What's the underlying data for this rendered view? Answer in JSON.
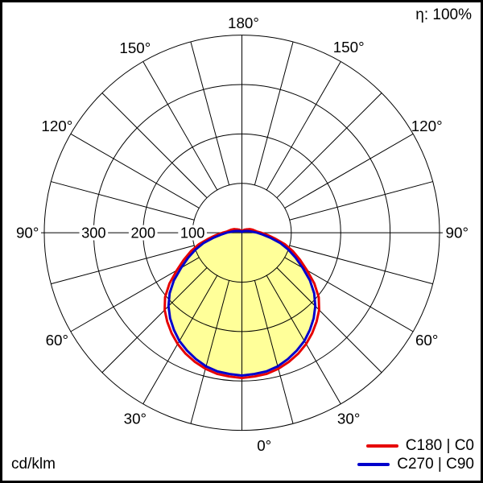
{
  "frame": {
    "background_color": "#ffffff",
    "border_color": "#000000"
  },
  "labels": {
    "efficiency": "η: 100%",
    "unit": "cd/klm"
  },
  "legend": [
    {
      "label": "C180 | C0",
      "color": "#e60000"
    },
    {
      "label": "C270 | C90",
      "color": "#0000cc"
    }
  ],
  "chart_data": {
    "type": "line",
    "subtype": "polar-photometric-distribution",
    "title": "",
    "unit": "cd/klm",
    "efficiency": "η: 100%",
    "grid": true,
    "radial_axis": {
      "tick_labels": [
        "100",
        "200",
        "300"
      ],
      "ticks": [
        100,
        200,
        300
      ],
      "max": 400,
      "grid_circle_values": [
        100,
        200,
        300,
        400
      ]
    },
    "angle_axis": {
      "labels": [
        "0°",
        "30°",
        "60°",
        "90°",
        "120°",
        "150°",
        "180°"
      ],
      "spoke_step_deg": 15,
      "zero_direction": "down"
    },
    "angles_deg": [
      0,
      5,
      10,
      15,
      20,
      25,
      30,
      35,
      40,
      45,
      50,
      55,
      60,
      65,
      70,
      75,
      80,
      85,
      90,
      95,
      100,
      105,
      110,
      115,
      120,
      125,
      130,
      135,
      140,
      145,
      150,
      155,
      160,
      165,
      170,
      175,
      180
    ],
    "series": [
      {
        "name": "C180 | C0",
        "color": "#e60000",
        "values": [
          294,
          292,
          290,
          285,
          278,
          270,
          260,
          248,
          235,
          221,
          203,
          179,
          152,
          130,
          110,
          90,
          68,
          52,
          39,
          30,
          26,
          23,
          20,
          17,
          14,
          12,
          10,
          9,
          8,
          7,
          6,
          5,
          4,
          4,
          3,
          3,
          3
        ]
      },
      {
        "name": "C270 | C90",
        "color": "#0000cc",
        "values": [
          289,
          287,
          285,
          280,
          272,
          263,
          253,
          240,
          226,
          210,
          191,
          168,
          142,
          120,
          100,
          80,
          58,
          42,
          31,
          22,
          17,
          13,
          10,
          8,
          7,
          6,
          5,
          4,
          4,
          3,
          3,
          2,
          2,
          2,
          2,
          2,
          2
        ]
      }
    ],
    "fill": {
      "series": "C270 | C90",
      "color": "#ffff99"
    },
    "legend_position": "bottom-right"
  }
}
